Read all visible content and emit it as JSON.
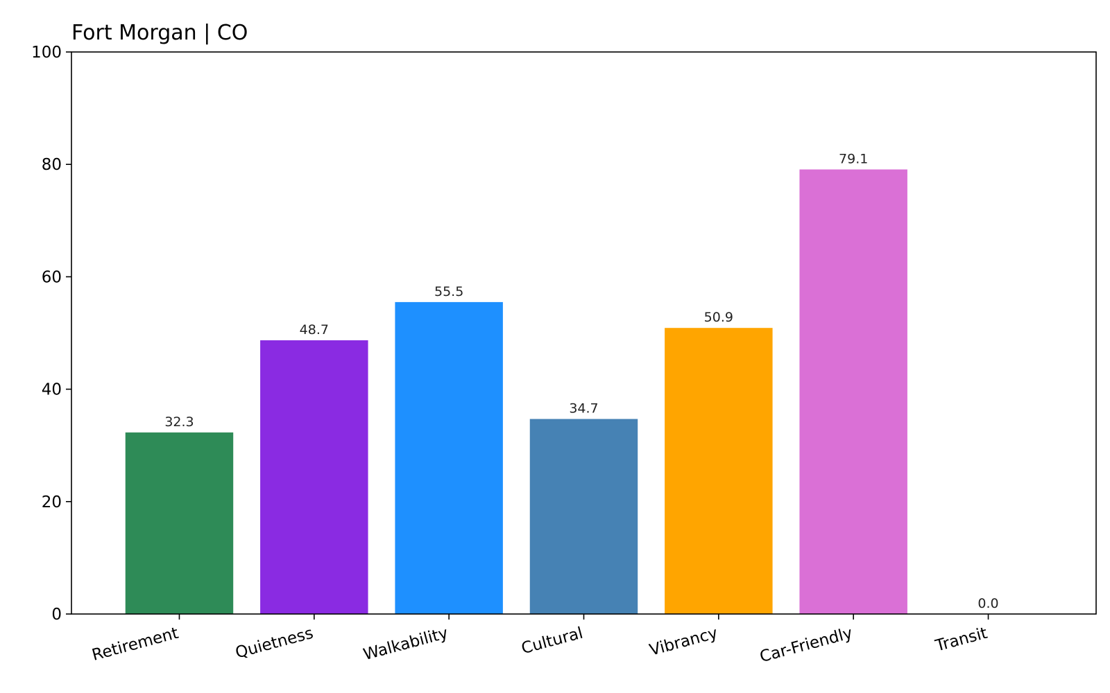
{
  "chart_data": {
    "type": "bar",
    "title": "Fort Morgan | CO",
    "xlabel": "",
    "ylabel": "",
    "categories": [
      "Retirement",
      "Quietness",
      "Walkability",
      "Cultural",
      "Vibrancy",
      "Car-Friendly",
      "Transit"
    ],
    "values": [
      32.3,
      48.7,
      55.5,
      34.7,
      50.9,
      79.1,
      0.0
    ],
    "value_labels": [
      "32.3",
      "48.7",
      "55.5",
      "34.7",
      "50.9",
      "79.1",
      "0.0"
    ],
    "colors": [
      "#2e8b57",
      "#8a2be2",
      "#1e90ff",
      "#4682b4",
      "#ffa500",
      "#da70d6",
      "#808080"
    ],
    "ylim": [
      0,
      100
    ],
    "yticks": [
      0,
      20,
      40,
      60,
      80,
      100
    ],
    "ytick_labels": [
      "0",
      "20",
      "40",
      "60",
      "80",
      "100"
    ],
    "grid": false,
    "legend": "none"
  }
}
